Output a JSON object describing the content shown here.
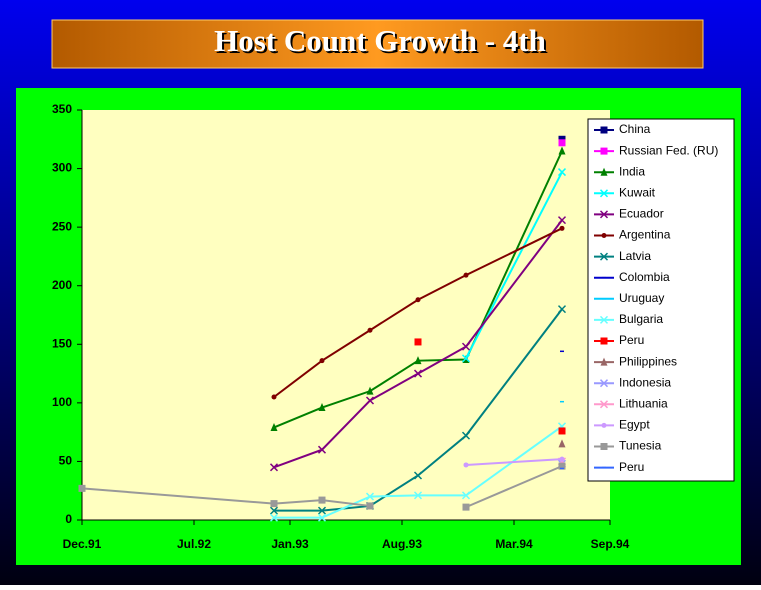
{
  "chart_data": {
    "type": "line",
    "title": "Host Count Growth - 4th",
    "x": [
      "1991-12",
      "1992-12",
      "1993-03",
      "1993-06",
      "1993-09",
      "1993-12",
      "1994-06"
    ],
    "xlim": [
      "1991-12",
      "1994-09"
    ],
    "xticks": [
      {
        "value": "1991-12",
        "label": "Dec.91"
      },
      {
        "value": "1992-07",
        "label": "Jul.92"
      },
      {
        "value": "1993-01",
        "label": "Jan.93"
      },
      {
        "value": "1993-08",
        "label": "Aug.93"
      },
      {
        "value": "1994-03",
        "label": "Mar.94"
      },
      {
        "value": "1994-09",
        "label": "Sep.94"
      }
    ],
    "ylim": [
      0,
      350
    ],
    "yticks": [
      0,
      50,
      100,
      150,
      200,
      250,
      300,
      350
    ],
    "legend": "right",
    "series": [
      {
        "name": "China",
        "color": "#000080",
        "marker": "square",
        "values": [
          null,
          null,
          null,
          null,
          null,
          null,
          325
        ]
      },
      {
        "name": "Russian Fed. (RU)",
        "color": "#ff00ff",
        "marker": "square",
        "values": [
          null,
          null,
          null,
          null,
          null,
          null,
          322
        ]
      },
      {
        "name": "India",
        "color": "#008000",
        "marker": "triangle",
        "values": [
          null,
          79,
          96,
          110,
          136,
          137,
          315
        ]
      },
      {
        "name": "Kuwait",
        "color": "#00ffff",
        "marker": "cross",
        "values": [
          null,
          null,
          null,
          null,
          null,
          138,
          297
        ]
      },
      {
        "name": "Ecuador",
        "color": "#800080",
        "marker": "cross",
        "values": [
          null,
          45,
          60,
          102,
          125,
          148,
          256
        ]
      },
      {
        "name": "Argentina",
        "color": "#800000",
        "marker": "circle",
        "values": [
          null,
          105,
          136,
          162,
          188,
          209,
          249
        ]
      },
      {
        "name": "Latvia",
        "color": "#008080",
        "marker": "cross",
        "values": [
          null,
          8,
          8,
          12,
          38,
          72,
          180
        ]
      },
      {
        "name": "Colombia",
        "color": "#0000cc",
        "marker": "dash",
        "values": [
          null,
          null,
          null,
          null,
          null,
          null,
          144
        ]
      },
      {
        "name": "Uruguay",
        "color": "#00ccff",
        "marker": "dash",
        "values": [
          null,
          null,
          null,
          null,
          null,
          null,
          101
        ]
      },
      {
        "name": "Bulgaria",
        "color": "#66ffff",
        "marker": "cross",
        "values": [
          null,
          2,
          2,
          20,
          21,
          21,
          80
        ]
      },
      {
        "name": "Peru",
        "color": "#ff0000",
        "marker": "square",
        "values": [
          null,
          null,
          null,
          null,
          152,
          null,
          76
        ]
      },
      {
        "name": "Philippines",
        "color": "#996666",
        "marker": "triangle",
        "values": [
          null,
          null,
          null,
          null,
          null,
          null,
          65
        ]
      },
      {
        "name": "Indonesia",
        "color": "#9999ff",
        "marker": "cross",
        "values": [
          null,
          null,
          null,
          null,
          null,
          null,
          48
        ]
      },
      {
        "name": "Lithuania",
        "color": "#ff99cc",
        "marker": "cross",
        "values": [
          null,
          null,
          null,
          null,
          null,
          null,
          50
        ]
      },
      {
        "name": "Egypt",
        "color": "#cc99ff",
        "marker": "circle",
        "values": [
          null,
          null,
          null,
          null,
          null,
          47,
          52
        ]
      },
      {
        "name": "Tunesia",
        "color": "#999999",
        "marker": "square",
        "values": [
          27,
          14,
          17,
          12,
          null,
          11,
          46
        ]
      },
      {
        "name": "Peru",
        "color": "#3366ff",
        "marker": "dash",
        "values": [
          null,
          null,
          null,
          null,
          null,
          null,
          44
        ]
      }
    ]
  }
}
